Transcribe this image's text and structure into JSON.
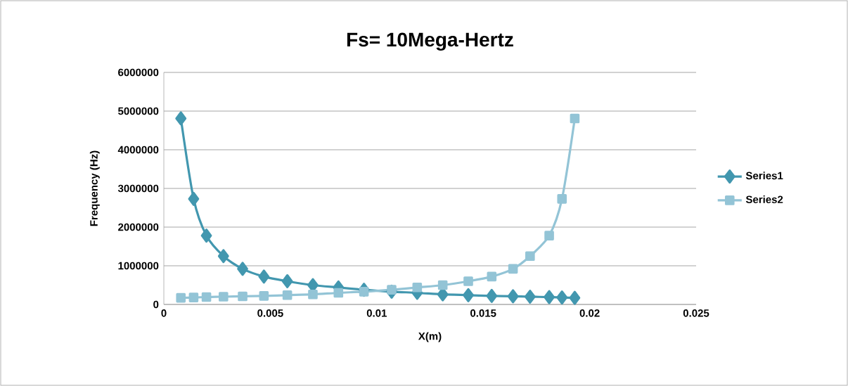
{
  "chart_data": {
    "type": "line",
    "title": "Fs= 10Mega-Hertz",
    "xlabel": "X(m)",
    "ylabel": "Frequency (Hz)",
    "xlim": [
      0,
      0.025
    ],
    "xticks": [
      0,
      0.005,
      0.01,
      0.015,
      0.02,
      0.025
    ],
    "ylim": [
      0,
      6000000
    ],
    "yticks": [
      0,
      1000000,
      2000000,
      3000000,
      4000000,
      5000000,
      6000000
    ],
    "grid": "y",
    "legend": "right",
    "x": [
      0.0008,
      0.0014,
      0.002,
      0.0028,
      0.0037,
      0.0047,
      0.0058,
      0.007,
      0.0082,
      0.0094,
      0.0107,
      0.0119,
      0.0131,
      0.0143,
      0.0154,
      0.0164,
      0.0172,
      0.0181,
      0.0187,
      0.0193
    ],
    "series": [
      {
        "name": "Series1",
        "color": "#4297af",
        "marker": "diamond",
        "values": [
          4810000,
          2730000,
          1780000,
          1250000,
          920000,
          720000,
          600000,
          500000,
          440000,
          380000,
          330000,
          300000,
          260000,
          240000,
          220000,
          210000,
          200000,
          190000,
          180000,
          170000
        ]
      },
      {
        "name": "Series2",
        "color": "#93c4d6",
        "marker": "square",
        "values": [
          170000,
          180000,
          190000,
          200000,
          210000,
          220000,
          240000,
          260000,
          300000,
          330000,
          380000,
          440000,
          500000,
          600000,
          720000,
          920000,
          1250000,
          1780000,
          2730000,
          4810000
        ]
      }
    ]
  }
}
